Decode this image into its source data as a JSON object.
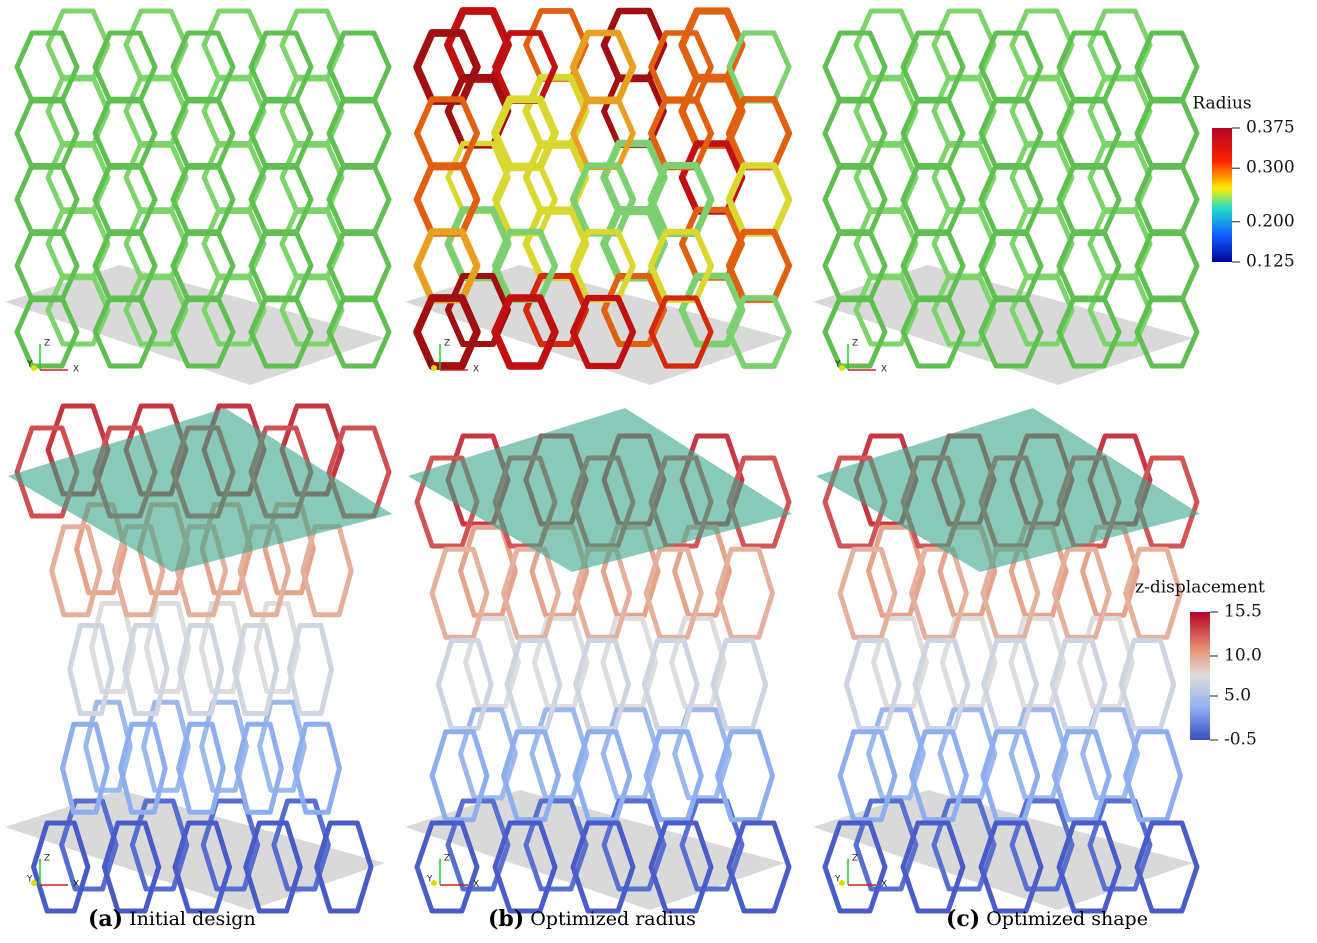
{
  "triad": {
    "z": "Z",
    "y": "Y",
    "x": "X"
  },
  "colorbars": [
    {
      "title": "Radius",
      "ticks": [
        {
          "value": 0.375,
          "label": "0.375"
        },
        {
          "value": 0.3,
          "label": "0.300"
        },
        {
          "value": 0.2,
          "label": "0.200"
        },
        {
          "value": 0.125,
          "label": "0.125"
        }
      ]
    },
    {
      "title": "z-displacement",
      "ticks": [
        15.5,
        {
          "value": 10,
          "label": "10.0"
        },
        {
          "value": 5,
          "label": "5.0"
        },
        -0.5
      ]
    }
  ],
  "captions": [
    {
      "label": "(a)",
      "text": "Initial design"
    },
    {
      "label": "(b)",
      "text": "Optimized radius"
    },
    {
      "label": "(c)",
      "text": "Optimized shape"
    }
  ]
}
